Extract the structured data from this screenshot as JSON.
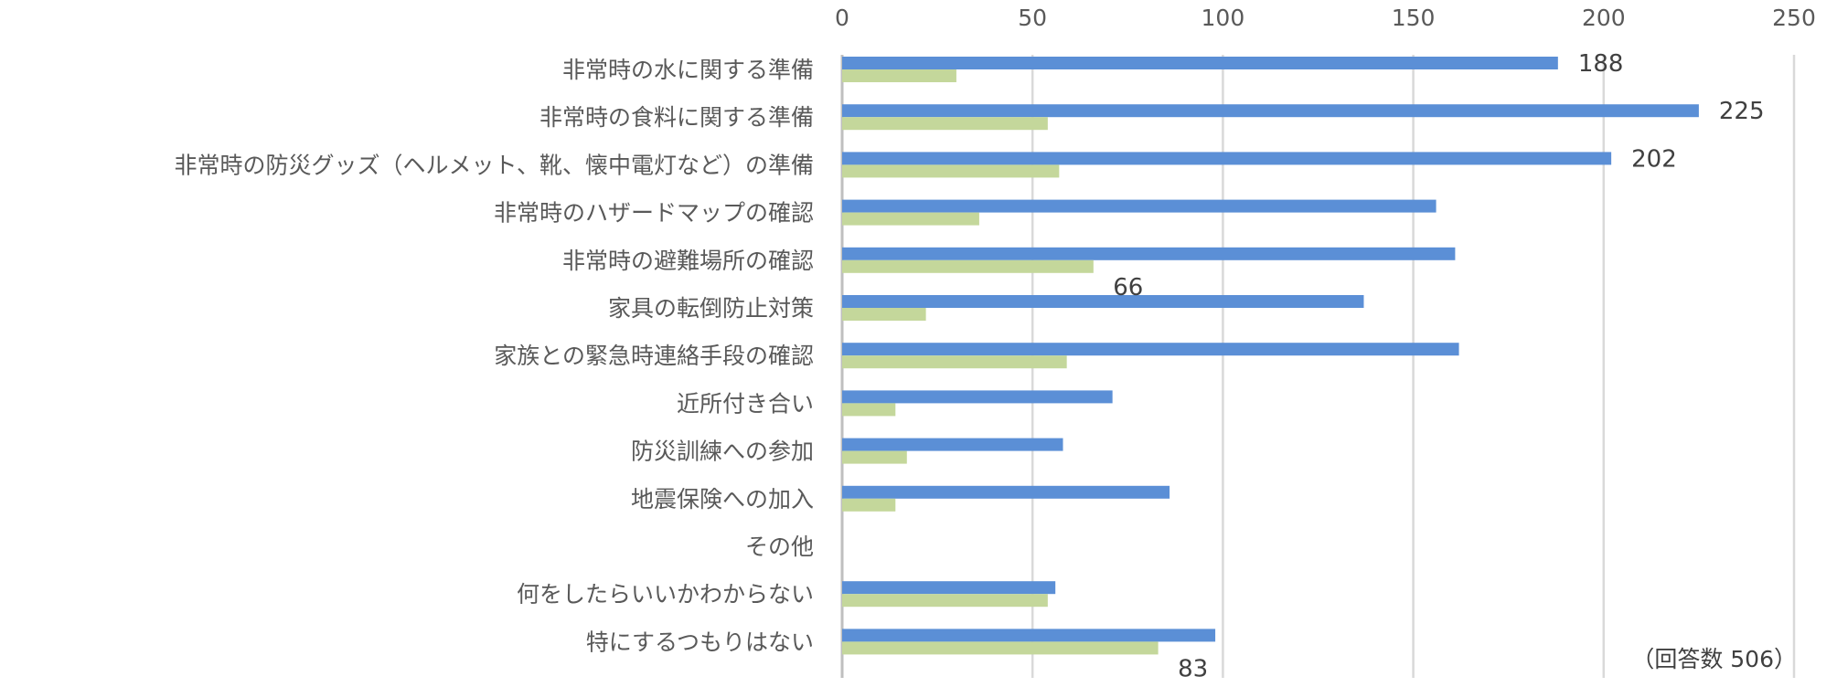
{
  "chart_data": {
    "type": "bar",
    "orientation": "horizontal",
    "title": "",
    "xlabel": "",
    "ylabel": "",
    "xlim": [
      0,
      250
    ],
    "x_ticks": [
      0,
      50,
      100,
      150,
      200,
      250
    ],
    "grid": true,
    "axis_position": "top",
    "categories": [
      "非常時の水に関する準備",
      "非常時の食料に関する準備",
      "非常時の防災グッズ（ヘルメット、靴、懐中電灯など）の準備",
      "非常時のハザードマップの確認",
      "非常時の避難場所の確認",
      "家具の転倒防止対策",
      "家族との緊急時連絡手段の確認",
      "近所付き合い",
      "防災訓練への参加",
      "地震保険への加入",
      "その他",
      "何をしたらいいかわからない",
      "特にするつもりはない"
    ],
    "series": [
      {
        "name": "series-1",
        "color": "#5B8FD6",
        "values": [
          188,
          225,
          202,
          156,
          161,
          137,
          162,
          71,
          58,
          86,
          0,
          56,
          98
        ],
        "labels": [
          "188",
          "225",
          "202",
          "",
          "",
          "",
          "",
          "",
          "",
          "",
          "",
          "",
          ""
        ]
      },
      {
        "name": "series-2",
        "color": "#C4D79B",
        "values": [
          30,
          54,
          57,
          36,
          66,
          22,
          59,
          14,
          17,
          14,
          0,
          54,
          83
        ],
        "labels": [
          "",
          "",
          "",
          "",
          "66",
          "",
          "",
          "",
          "",
          "",
          "",
          "",
          "83"
        ]
      }
    ],
    "note": "（回答数 506）"
  }
}
